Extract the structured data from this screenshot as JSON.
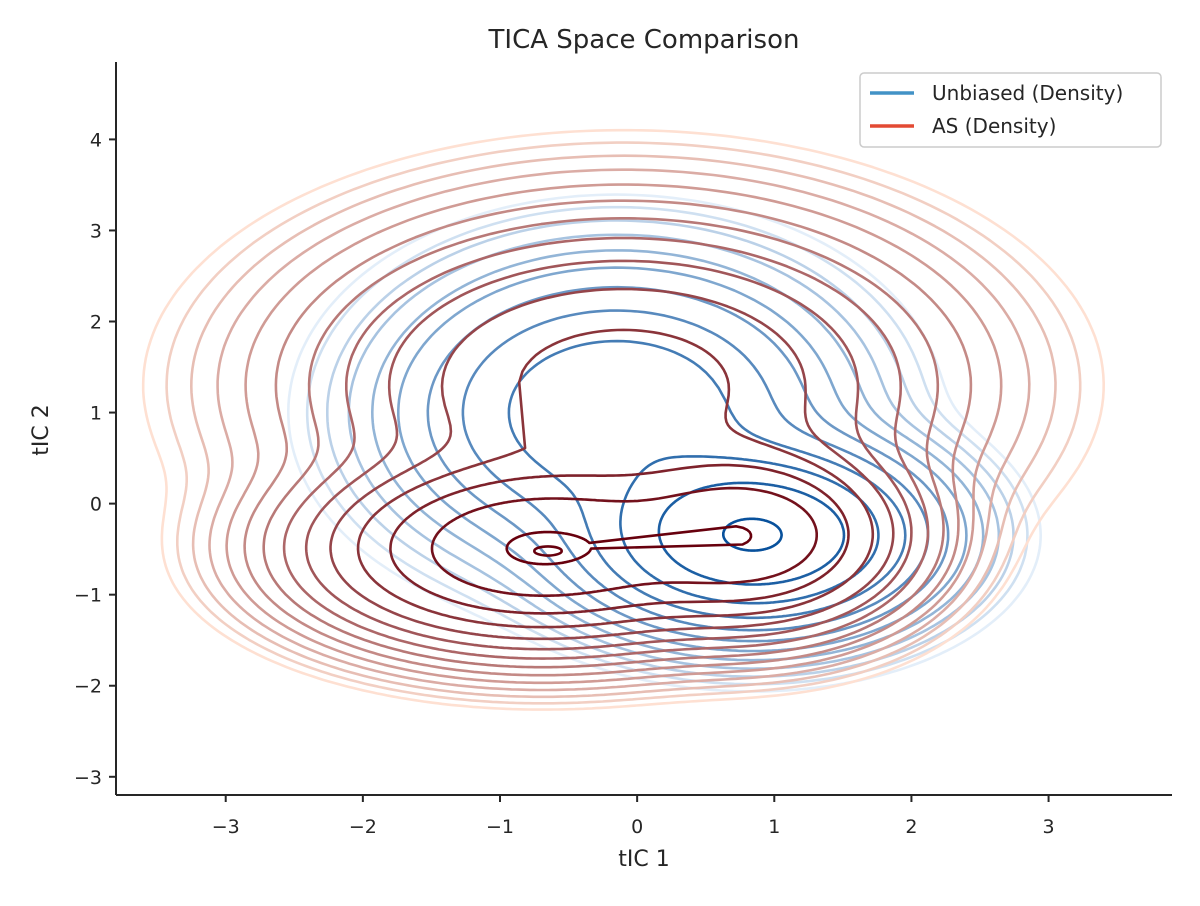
{
  "chart_data": {
    "type": "contour",
    "title": "TICA Space Comparison",
    "xlabel": "tIC 1",
    "ylabel": "tIC 2",
    "xlim": [
      -3.8,
      3.9
    ],
    "ylim": [
      -3.2,
      4.85
    ],
    "xticks": [
      -3,
      -2,
      -1,
      0,
      1,
      2,
      3
    ],
    "yticks": [
      -3,
      -2,
      -1,
      0,
      1,
      2,
      3,
      4
    ],
    "grid": false,
    "legend_position": "top-right",
    "series": [
      {
        "name": "Unbiased (Density)",
        "legend_color": "#4292c6",
        "color_light": "#e3eef9",
        "color_dark": "#08519c",
        "levels": 12,
        "outer_extent": {
          "x": [
            -1.6,
            2.45
          ],
          "y": [
            -2.05,
            2.45
          ]
        },
        "peaks": [
          {
            "x": 0.85,
            "y": -0.35,
            "sx": 0.55,
            "sy": 0.45,
            "w": 1.0
          },
          {
            "x": -0.15,
            "y": 1.0,
            "sx": 0.7,
            "sy": 0.7,
            "w": 0.25
          }
        ]
      },
      {
        "name": "AS (Density)",
        "legend_color": "#e34a33",
        "color_light": "#fee0d2",
        "color_dark": "#67000d",
        "levels": 14,
        "outer_extent": {
          "x": [
            -2.65,
            2.7
          ],
          "y": [
            -2.25,
            3.05
          ]
        },
        "peaks": [
          {
            "x": -0.7,
            "y": -0.5,
            "sx": 0.7,
            "sy": 0.45,
            "w": 1.0
          },
          {
            "x": 0.8,
            "y": -0.35,
            "sx": 0.5,
            "sy": 0.45,
            "w": 0.85
          },
          {
            "x": -0.1,
            "y": 1.3,
            "sx": 1.0,
            "sy": 0.8,
            "w": 0.22
          }
        ]
      }
    ]
  }
}
